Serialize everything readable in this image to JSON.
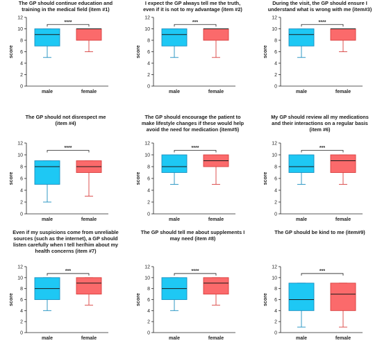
{
  "y_axis_label": "score",
  "colors": {
    "male_fill": "#1ec8f4",
    "male_stroke": "#1b8fc0",
    "female_fill": "#fb6a6b",
    "female_stroke": "#d9403f"
  },
  "chart_data": [
    {
      "type": "box",
      "title": "The GP should continue education and\ntraining in the medical field (item #1)",
      "ylabel": "score",
      "ylim": [
        0,
        12
      ],
      "yticks": [
        0,
        2,
        4,
        6,
        8,
        10,
        12
      ],
      "categories": [
        "male",
        "female"
      ],
      "significance": "****",
      "series": [
        {
          "name": "male",
          "min": 5,
          "q1": 7,
          "median": 9,
          "q3": 10,
          "max": 10
        },
        {
          "name": "female",
          "min": 6,
          "q1": 8,
          "median": 10,
          "q3": 10,
          "max": 10
        }
      ]
    },
    {
      "type": "box",
      "title": "I expect the GP always tell me the truth,\neven if it is not to my advantage (item #2)",
      "ylabel": "score",
      "ylim": [
        0,
        12
      ],
      "yticks": [
        0,
        2,
        4,
        6,
        8,
        10,
        12
      ],
      "categories": [
        "male",
        "female"
      ],
      "significance": "***",
      "series": [
        {
          "name": "male",
          "min": 5,
          "q1": 7,
          "median": 9,
          "q3": 10,
          "max": 10
        },
        {
          "name": "female",
          "min": 5,
          "q1": 8,
          "median": 10,
          "q3": 10,
          "max": 10
        }
      ]
    },
    {
      "type": "box",
      "title": "During the visit, the GP should ensure I\nunderstand what is wrong with me (item#3)",
      "ylabel": "score",
      "ylim": [
        0,
        12
      ],
      "yticks": [
        0,
        2,
        4,
        6,
        8,
        10,
        12
      ],
      "categories": [
        "male",
        "female"
      ],
      "significance": "****",
      "series": [
        {
          "name": "male",
          "min": 5,
          "q1": 7,
          "median": 9,
          "q3": 10,
          "max": 10
        },
        {
          "name": "female",
          "min": 6,
          "q1": 8,
          "median": 10,
          "q3": 10,
          "max": 10
        }
      ]
    },
    {
      "type": "box",
      "title": "The GP should not disrespect me\n(item #4)",
      "ylabel": "score",
      "ylim": [
        0,
        12
      ],
      "yticks": [
        0,
        2,
        4,
        6,
        8,
        10,
        12
      ],
      "categories": [
        "male",
        "female"
      ],
      "significance": "****",
      "series": [
        {
          "name": "male",
          "min": 2,
          "q1": 5,
          "median": 8,
          "q3": 9,
          "max": 9
        },
        {
          "name": "female",
          "min": 3,
          "q1": 7,
          "median": 8,
          "q3": 9,
          "max": 9
        }
      ]
    },
    {
      "type": "box",
      "title": "The GP should encourage the patient to\nmake lifestyle changes if these would help\navoid the need for medication (item#5)",
      "ylabel": "score",
      "ylim": [
        0,
        12
      ],
      "yticks": [
        0,
        2,
        4,
        6,
        8,
        10,
        12
      ],
      "categories": [
        "male",
        "female"
      ],
      "significance": "****",
      "series": [
        {
          "name": "male",
          "min": 5,
          "q1": 7,
          "median": 8,
          "q3": 10,
          "max": 10
        },
        {
          "name": "female",
          "min": 5,
          "q1": 8,
          "median": 9,
          "q3": 10,
          "max": 10
        }
      ]
    },
    {
      "type": "box",
      "title": "My GP should review all my medications\nand their interactions on a regular basis\n(item #6)",
      "ylabel": "score",
      "ylim": [
        0,
        12
      ],
      "yticks": [
        0,
        2,
        4,
        6,
        8,
        10,
        12
      ],
      "categories": [
        "male",
        "female"
      ],
      "significance": "***",
      "series": [
        {
          "name": "male",
          "min": 5,
          "q1": 7,
          "median": 8,
          "q3": 10,
          "max": 10
        },
        {
          "name": "female",
          "min": 5,
          "q1": 7,
          "median": 9,
          "q3": 10,
          "max": 10
        }
      ]
    },
    {
      "type": "box",
      "title": "Even if my suspicions come from unreliable\nsources (such as the internet), a GP should\nlisten carefully when I tell her/him about my\nhealth concerns (item #7)",
      "ylabel": "score",
      "ylim": [
        0,
        12
      ],
      "yticks": [
        0,
        2,
        4,
        6,
        8,
        10,
        12
      ],
      "categories": [
        "male",
        "female"
      ],
      "significance": "***",
      "series": [
        {
          "name": "male",
          "min": 4,
          "q1": 6,
          "median": 8,
          "q3": 10,
          "max": 10
        },
        {
          "name": "female",
          "min": 5,
          "q1": 7,
          "median": 9,
          "q3": 10,
          "max": 10
        }
      ]
    },
    {
      "type": "box",
      "title": "The GP should tell me about supplements I\nmay need (item #8)",
      "ylabel": "score",
      "ylim": [
        0,
        12
      ],
      "yticks": [
        0,
        2,
        4,
        6,
        8,
        10,
        12
      ],
      "categories": [
        "male",
        "female"
      ],
      "significance": "****",
      "series": [
        {
          "name": "male",
          "min": 4,
          "q1": 6,
          "median": 8,
          "q3": 10,
          "max": 10
        },
        {
          "name": "female",
          "min": 5,
          "q1": 7,
          "median": 9,
          "q3": 10,
          "max": 10
        }
      ]
    },
    {
      "type": "box",
      "title": "The GP should be kind to me (item#9)",
      "ylabel": "score",
      "ylim": [
        0,
        12
      ],
      "yticks": [
        0,
        2,
        4,
        6,
        8,
        10,
        12
      ],
      "categories": [
        "male",
        "female"
      ],
      "significance": "***",
      "series": [
        {
          "name": "male",
          "min": 1,
          "q1": 4,
          "median": 6,
          "q3": 9,
          "max": 9
        },
        {
          "name": "female",
          "min": 1,
          "q1": 4,
          "median": 7,
          "q3": 9,
          "max": 9
        }
      ]
    }
  ]
}
